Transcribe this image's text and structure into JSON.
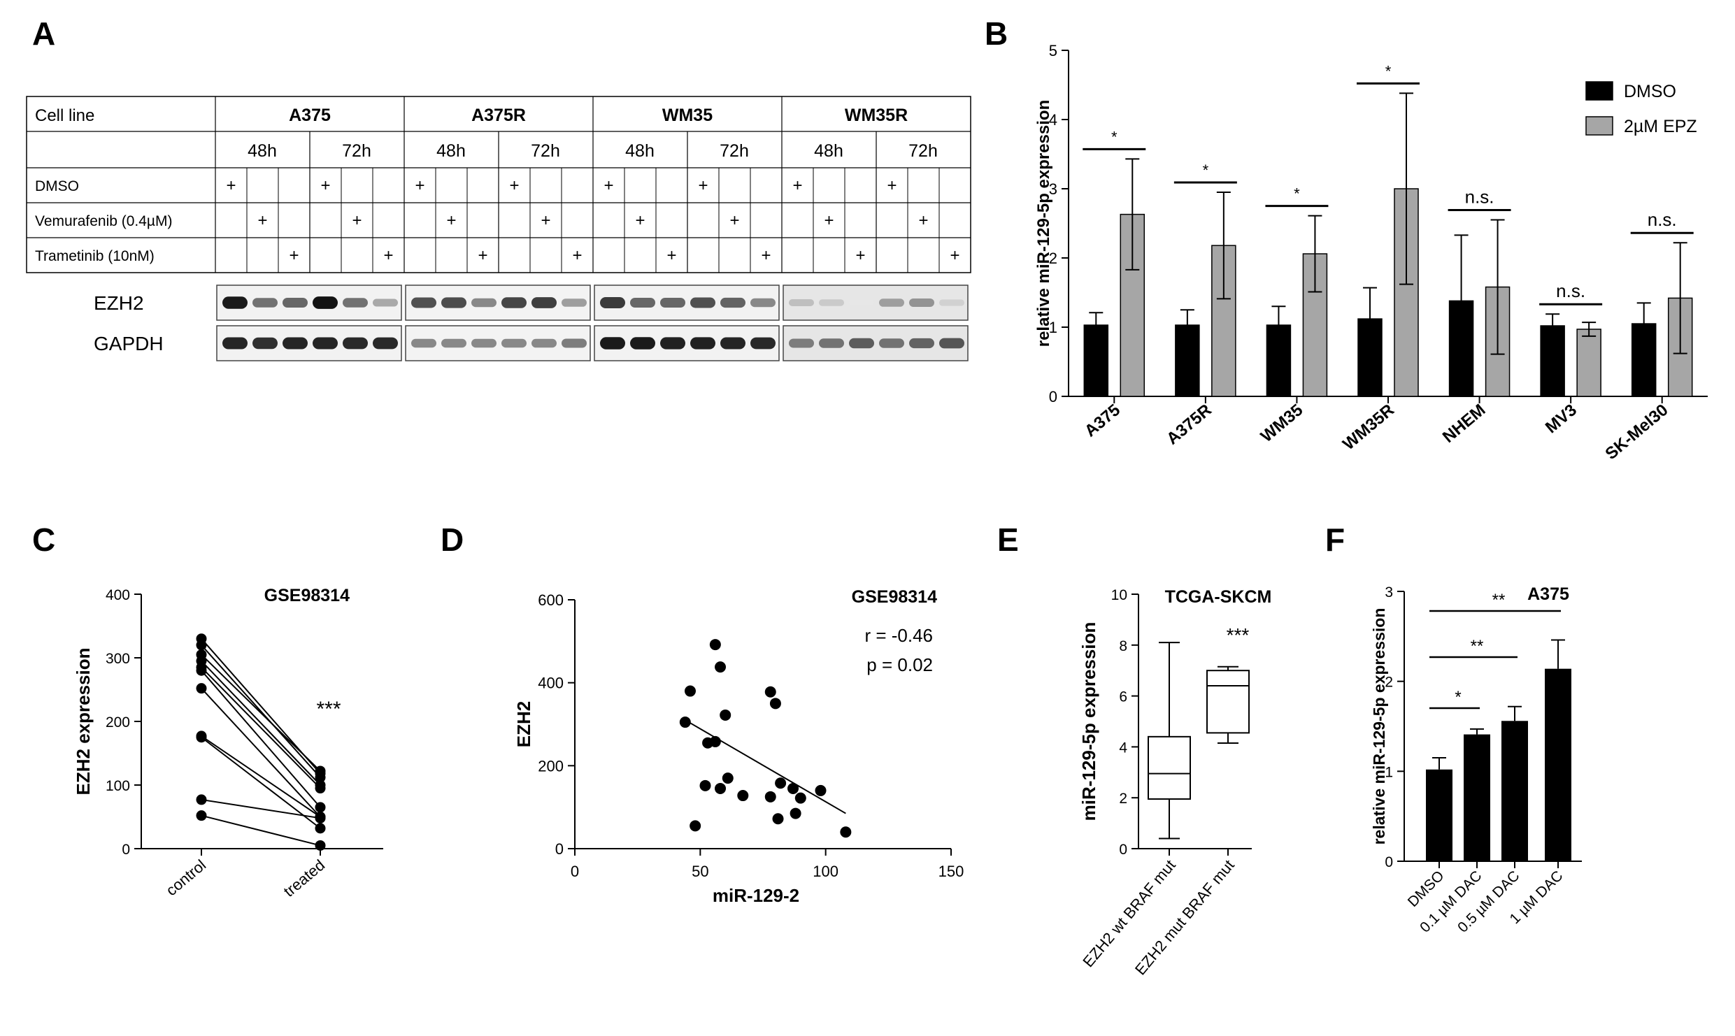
{
  "panel_labels": [
    "A",
    "B",
    "C",
    "D",
    "E",
    "F"
  ],
  "chart_data": [
    {
      "panel": "A",
      "type": "table",
      "header": {
        "label": "Cell line",
        "lines": [
          "A375",
          "A375R",
          "WM35",
          "WM35R"
        ],
        "times": [
          "48h",
          "72h"
        ]
      },
      "rows": [
        {
          "label": "DMSO",
          "marks": [
            1,
            0,
            0,
            1,
            0,
            0,
            1,
            0,
            0,
            1,
            0,
            0,
            1,
            0,
            0,
            1,
            0,
            0,
            1,
            0,
            0,
            1,
            0,
            0
          ]
        },
        {
          "label": "Vemurafenib (0.4µM)",
          "marks": [
            0,
            1,
            0,
            0,
            1,
            0,
            0,
            1,
            0,
            0,
            1,
            0,
            0,
            1,
            0,
            0,
            1,
            0,
            0,
            1,
            0,
            0,
            1,
            0
          ]
        },
        {
          "label": "Trametinib (10nM)",
          "marks": [
            0,
            0,
            1,
            0,
            0,
            1,
            0,
            0,
            1,
            0,
            0,
            1,
            0,
            0,
            1,
            0,
            0,
            1,
            0,
            0,
            1,
            0,
            0,
            1
          ]
        }
      ],
      "mark_symbol": "+",
      "blots": [
        {
          "name": "EZH2",
          "intensity": [
            0.95,
            0.55,
            0.6,
            0.98,
            0.55,
            0.3,
            0.7,
            0.72,
            0.45,
            0.75,
            0.78,
            0.35,
            0.8,
            0.6,
            0.6,
            0.7,
            0.62,
            0.45,
            0.2,
            0.15,
            0.02,
            0.35,
            0.4,
            0.12
          ]
        },
        {
          "name": "GAPDH",
          "intensity": [
            0.9,
            0.85,
            0.9,
            0.9,
            0.88,
            0.88,
            0.45,
            0.45,
            0.45,
            0.45,
            0.45,
            0.5,
            0.95,
            0.95,
            0.92,
            0.92,
            0.9,
            0.88,
            0.5,
            0.55,
            0.65,
            0.55,
            0.62,
            0.68
          ]
        }
      ]
    },
    {
      "panel": "B",
      "type": "bar",
      "ylabel": "relative miR-129-5p expression",
      "ylim": [
        0,
        5
      ],
      "yticks": [
        0,
        1,
        2,
        3,
        4,
        5
      ],
      "categories": [
        "A375",
        "A375R",
        "WM35",
        "WM35R",
        "NHEM",
        "MV3",
        "SK-Mel30"
      ],
      "series": [
        {
          "name": "DMSO",
          "color": "#000000",
          "values": [
            1.03,
            1.03,
            1.03,
            1.12,
            1.38,
            1.02,
            1.05
          ],
          "errors": [
            0.18,
            0.22,
            0.27,
            0.45,
            0.95,
            0.17,
            0.3
          ]
        },
        {
          "name": "2µM EPZ",
          "color": "#a6a6a6",
          "values": [
            2.63,
            2.18,
            2.06,
            3.0,
            1.58,
            0.97,
            1.42
          ],
          "errors": [
            0.8,
            0.77,
            0.55,
            1.38,
            0.97,
            0.1,
            0.8
          ]
        }
      ],
      "significance": [
        "*",
        "*",
        "*",
        "*",
        "n.s.",
        "n.s.",
        "n.s."
      ],
      "legend": "top-right"
    },
    {
      "panel": "C",
      "type": "line",
      "title": "GSE98314",
      "ylabel": "EZH2 expression",
      "ylim": [
        0,
        400
      ],
      "yticks": [
        0,
        100,
        200,
        300,
        400
      ],
      "categories": [
        "control",
        "treated"
      ],
      "pairs": [
        [
          330,
          118
        ],
        [
          320,
          112
        ],
        [
          305,
          122
        ],
        [
          295,
          100
        ],
        [
          285,
          95
        ],
        [
          280,
          65
        ],
        [
          252,
          50
        ],
        [
          177,
          50
        ],
        [
          175,
          32
        ],
        [
          77,
          48
        ],
        [
          52,
          5
        ]
      ],
      "significance": "***"
    },
    {
      "panel": "D",
      "type": "scatter",
      "title": "GSE98314",
      "xlabel": "miR-129-2",
      "ylabel": "EZH2",
      "xlim": [
        0,
        150
      ],
      "ylim": [
        0,
        600
      ],
      "xticks": [
        0,
        50,
        100,
        150
      ],
      "yticks": [
        0,
        200,
        400,
        600
      ],
      "points": [
        [
          56,
          492
        ],
        [
          58,
          438
        ],
        [
          46,
          380
        ],
        [
          44,
          305
        ],
        [
          60,
          322
        ],
        [
          53,
          255
        ],
        [
          56,
          258
        ],
        [
          61,
          170
        ],
        [
          52,
          152
        ],
        [
          58,
          145
        ],
        [
          67,
          128
        ],
        [
          78,
          378
        ],
        [
          80,
          350
        ],
        [
          78,
          125
        ],
        [
          82,
          158
        ],
        [
          87,
          145
        ],
        [
          90,
          122
        ],
        [
          81,
          72
        ],
        [
          88,
          85
        ],
        [
          98,
          140
        ],
        [
          108,
          40
        ],
        [
          48,
          55
        ]
      ],
      "fit": {
        "x": [
          44,
          108
        ],
        "y": [
          310,
          85
        ]
      },
      "annotation": [
        "r = -0.46",
        "p = 0.02"
      ]
    },
    {
      "panel": "E",
      "type": "box",
      "title": "TCGA-SKCM",
      "ylabel": "miR-129-5p expression",
      "ylim": [
        0,
        10
      ],
      "yticks": [
        0,
        2,
        4,
        6,
        8,
        10
      ],
      "categories": [
        "EZH2 wt BRAF mut",
        "EZH2 mut BRAF mut"
      ],
      "boxes": [
        {
          "min": 0.4,
          "q1": 1.95,
          "median": 2.95,
          "q3": 4.4,
          "max": 8.1
        },
        {
          "min": 4.15,
          "q1": 4.55,
          "median": 6.4,
          "q3": 7.0,
          "max": 7.15
        }
      ],
      "significance": "***"
    },
    {
      "panel": "F",
      "type": "bar",
      "title": "A375",
      "ylabel": "relative miR-129-5p expression",
      "ylim": [
        0,
        3
      ],
      "yticks": [
        0,
        1,
        2,
        3
      ],
      "categories": [
        "DMSO",
        "0.1 µM DAC",
        "0.5 µM DAC",
        "1 µM DAC"
      ],
      "values": [
        1.02,
        1.41,
        1.56,
        2.14
      ],
      "errors": [
        0.13,
        0.06,
        0.16,
        0.32
      ],
      "brackets": [
        {
          "from": 0,
          "to": 1,
          "label": "*"
        },
        {
          "from": 0,
          "to": 2,
          "label": "**"
        },
        {
          "from": 0,
          "to": 3,
          "label": "**"
        }
      ]
    }
  ]
}
